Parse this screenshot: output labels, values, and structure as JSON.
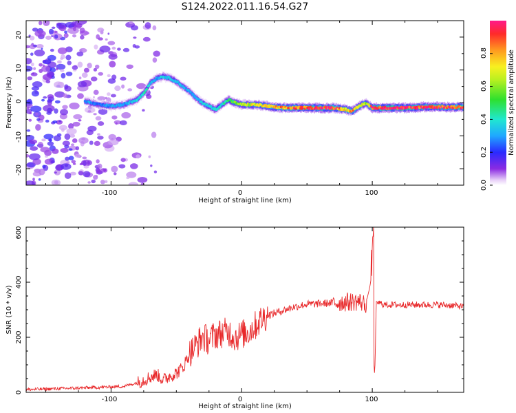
{
  "figure": {
    "title": "S124.2022.011.16.54.G27"
  },
  "colors": {
    "snr_line": "#e8282a",
    "spectrogram_low": "#8a2be2",
    "spectrogram_high": "#e8282a",
    "frame": "#000000"
  },
  "chart_data": [
    {
      "type": "heatmap",
      "title": "S124.2022.011.16.54.G27",
      "xlabel": "Height of straight line (km)",
      "ylabel": "Frequency (Hz)",
      "xlim": [
        -165,
        170
      ],
      "ylim": [
        -25,
        25
      ],
      "xticks": [
        "-100",
        "0",
        "100"
      ],
      "yticks": [
        "-20",
        "-10",
        "0",
        "10",
        "20"
      ],
      "colorbar": {
        "label": "Normalized spectral amplitude",
        "ticks": [
          "0.0",
          "0.2",
          "0.4",
          "0.6",
          "0.8"
        ],
        "range": [
          0,
          1
        ],
        "colormap": "rainbow"
      },
      "ridge": {
        "description_points_x": [
          -120,
          -110,
          -100,
          -90,
          -80,
          -75,
          -70,
          -65,
          -60,
          -55,
          -50,
          -45,
          -40,
          -35,
          -30,
          -25,
          -20,
          -15,
          -10,
          -5,
          0,
          10,
          20,
          30,
          40,
          50,
          60,
          70,
          80,
          85,
          90,
          95,
          100,
          110,
          120,
          130,
          140,
          150,
          160,
          170
        ],
        "frequency_hz": [
          0.5,
          -0.5,
          -1,
          -0.5,
          1,
          3,
          6,
          7.5,
          8,
          7.5,
          6.5,
          5,
          3.5,
          1.5,
          0,
          -1,
          -2,
          -0.5,
          1,
          0,
          -0.5,
          -0.5,
          -1,
          -1.5,
          -1.5,
          -1.5,
          -1.5,
          -1.5,
          -2,
          -2.5,
          -1,
          0,
          -1.5,
          -1.5,
          -1.5,
          -1.5,
          -1.2,
          -1.2,
          -1.3,
          -1.3
        ],
        "amplitude": [
          0.3,
          0.25,
          0.3,
          0.3,
          0.35,
          0.4,
          0.35,
          0.3,
          0.35,
          0.35,
          0.35,
          0.3,
          0.3,
          0.3,
          0.35,
          0.35,
          0.4,
          0.4,
          0.45,
          0.55,
          0.6,
          0.7,
          0.75,
          0.8,
          0.85,
          0.9,
          0.95,
          0.95,
          0.7,
          0.8,
          0.75,
          0.6,
          0.95,
          0.95,
          0.95,
          0.95,
          0.9,
          0.9,
          0.9,
          0.95
        ]
      }
    },
    {
      "type": "line",
      "xlabel": "Height of straight line (km)",
      "ylabel": "SNR (10 * v/v)",
      "xlim": [
        -165,
        170
      ],
      "ylim": [
        0,
        600
      ],
      "xticks": [
        "-100",
        "0",
        "100"
      ],
      "yticks": [
        "0",
        "200",
        "400",
        "600"
      ],
      "series": [
        {
          "x": [
            -165,
            -150,
            -130,
            -110,
            -90,
            -80,
            -70,
            -65,
            -60,
            -55,
            -50,
            -45,
            -40,
            -35,
            -30,
            -25,
            -20,
            -15,
            -10,
            -5,
            0,
            5,
            10,
            15,
            20,
            30,
            40,
            50,
            60,
            70,
            80,
            90,
            95,
            98,
            100,
            101,
            102,
            103,
            105,
            110,
            120,
            130,
            140,
            150,
            160,
            170
          ],
          "values": [
            10,
            12,
            15,
            18,
            22,
            35,
            55,
            65,
            45,
            60,
            70,
            90,
            140,
            170,
            200,
            190,
            210,
            215,
            220,
            200,
            210,
            220,
            240,
            265,
            280,
            295,
            310,
            320,
            322,
            325,
            328,
            330,
            320,
            380,
            440,
            600,
            60,
            330,
            325,
            318,
            318,
            318,
            318,
            318,
            316,
            312
          ]
        }
      ]
    }
  ]
}
